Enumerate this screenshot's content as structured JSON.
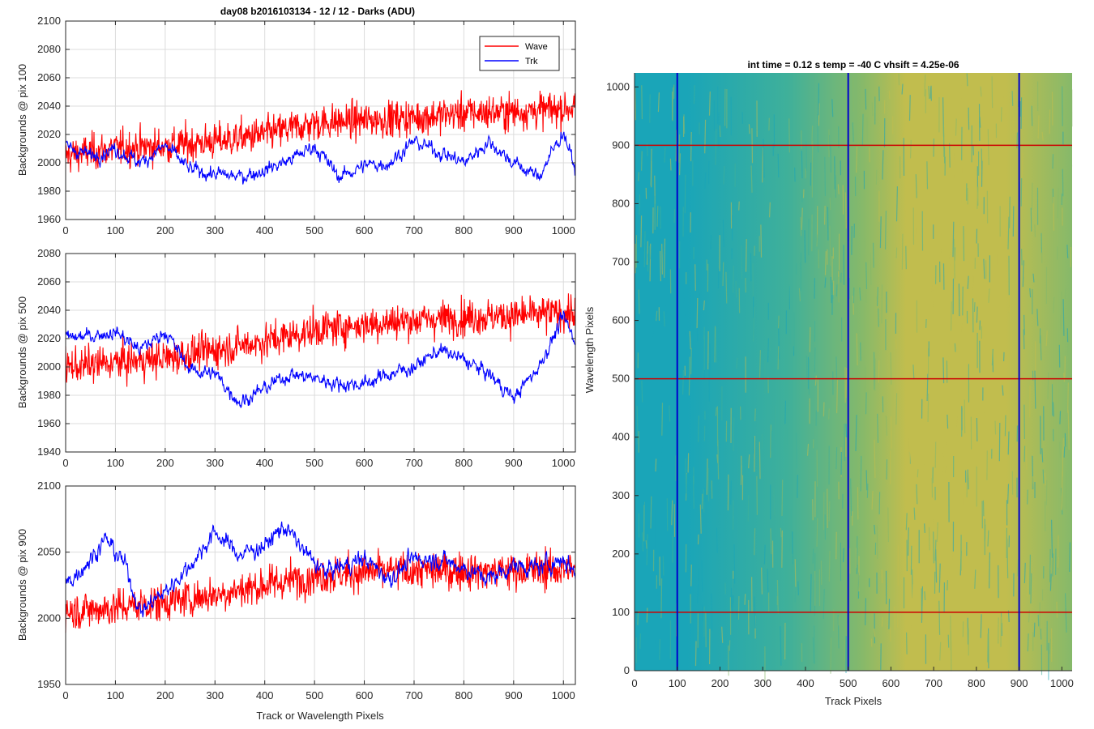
{
  "figure_title": "day08 b2016103134 - 12 / 12 - Darks (ADU)",
  "colors": {
    "wave": "#ff0000",
    "trk": "#0000ff",
    "grid": "#dcdcdc",
    "axis": "#262626"
  },
  "chart_data": [
    {
      "type": "line",
      "ylabel": "Backgrounds @ pix 100",
      "xlabel": "",
      "xlim": [
        0,
        1024
      ],
      "ylim": [
        1960,
        2100
      ],
      "xticks": [
        0,
        100,
        200,
        300,
        400,
        500,
        600,
        700,
        800,
        900,
        1000
      ],
      "yticks": [
        1960,
        1980,
        2000,
        2020,
        2040,
        2060,
        2080,
        2100
      ],
      "grid": true,
      "legend": {
        "position": "top-right",
        "entries": [
          "Wave",
          "Trk"
        ]
      },
      "series": [
        {
          "name": "Wave",
          "color": "#ff0000",
          "x": [
            0,
            100,
            200,
            300,
            400,
            500,
            600,
            700,
            800,
            900,
            1000,
            1024
          ],
          "values": [
            2005,
            2010,
            2012,
            2015,
            2020,
            2028,
            2030,
            2032,
            2035,
            2036,
            2038,
            2040
          ]
        },
        {
          "name": "Trk",
          "color": "#0000ff",
          "x": [
            0,
            50,
            100,
            150,
            200,
            250,
            300,
            350,
            400,
            450,
            500,
            550,
            600,
            650,
            700,
            750,
            800,
            850,
            900,
            950,
            1000,
            1024
          ],
          "values": [
            2012,
            2005,
            2010,
            2000,
            2012,
            1995,
            1992,
            1990,
            1995,
            2002,
            2012,
            1990,
            1998,
            2000,
            2015,
            2008,
            2000,
            2015,
            2000,
            1990,
            2022,
            1995
          ]
        }
      ]
    },
    {
      "type": "line",
      "ylabel": "Backgrounds @ pix 500",
      "xlabel": "",
      "xlim": [
        0,
        1024
      ],
      "ylim": [
        1940,
        2080
      ],
      "xticks": [
        0,
        100,
        200,
        300,
        400,
        500,
        600,
        700,
        800,
        900,
        1000
      ],
      "yticks": [
        1940,
        1960,
        1980,
        2000,
        2020,
        2040,
        2060,
        2080
      ],
      "grid": true,
      "series": [
        {
          "name": "Wave",
          "color": "#ff0000",
          "x": [
            0,
            100,
            200,
            300,
            400,
            500,
            600,
            700,
            800,
            900,
            1000,
            1024
          ],
          "values": [
            2000,
            2003,
            2006,
            2012,
            2018,
            2026,
            2030,
            2033,
            2035,
            2036,
            2038,
            2038
          ]
        },
        {
          "name": "Trk",
          "color": "#0000ff",
          "x": [
            0,
            50,
            100,
            150,
            200,
            250,
            300,
            350,
            400,
            450,
            500,
            550,
            600,
            650,
            700,
            750,
            800,
            850,
            900,
            950,
            1000,
            1024
          ],
          "values": [
            2020,
            2022,
            2025,
            2012,
            2025,
            1998,
            1995,
            1975,
            1985,
            1995,
            1992,
            1988,
            1988,
            1995,
            2000,
            2012,
            2005,
            1995,
            1978,
            2000,
            2035,
            2018
          ]
        }
      ]
    },
    {
      "type": "line",
      "ylabel": "Backgrounds @ pix 900",
      "xlabel": "Track or Wavelength Pixels",
      "xlim": [
        0,
        1024
      ],
      "ylim": [
        1950,
        2100
      ],
      "xticks": [
        0,
        100,
        200,
        300,
        400,
        500,
        600,
        700,
        800,
        900,
        1000
      ],
      "yticks": [
        1950,
        2000,
        2050,
        2100
      ],
      "grid": true,
      "series": [
        {
          "name": "Wave",
          "color": "#ff0000",
          "x": [
            0,
            100,
            200,
            300,
            400,
            500,
            600,
            700,
            800,
            900,
            1000,
            1024
          ],
          "values": [
            2005,
            2008,
            2012,
            2018,
            2025,
            2032,
            2035,
            2036,
            2036,
            2036,
            2037,
            2037
          ]
        },
        {
          "name": "Trk",
          "color": "#0000ff",
          "x": [
            0,
            50,
            80,
            120,
            150,
            200,
            250,
            300,
            350,
            400,
            440,
            480,
            520,
            600,
            650,
            700,
            750,
            800,
            850,
            900,
            950,
            1000,
            1024
          ],
          "values": [
            2025,
            2045,
            2060,
            2040,
            2005,
            2020,
            2040,
            2065,
            2048,
            2055,
            2070,
            2050,
            2035,
            2045,
            2030,
            2045,
            2045,
            2038,
            2030,
            2040,
            2038,
            2045,
            2035
          ]
        }
      ]
    },
    {
      "type": "heatmap",
      "title": "int time = 0.12 s    temp = -40 C    vhsift = 4.25e-06",
      "xlabel": "Track Pixels",
      "ylabel": "Wavelength Pixels",
      "xlim": [
        0,
        1024
      ],
      "ylim": [
        0,
        1024
      ],
      "xticks": [
        0,
        100,
        200,
        300,
        400,
        500,
        600,
        700,
        800,
        900,
        1000
      ],
      "yticks": [
        0,
        100,
        200,
        300,
        400,
        500,
        600,
        700,
        800,
        900,
        1000
      ],
      "vertical_lines": [
        100,
        500,
        900
      ],
      "horizontal_lines": [
        100,
        500,
        900
      ],
      "vertical_line_color": "#0000cc",
      "horizontal_line_color": "#cc0000",
      "colormap": [
        "#1aa5b8",
        "#3fb09a",
        "#86b96a",
        "#c1bd4e"
      ]
    }
  ]
}
